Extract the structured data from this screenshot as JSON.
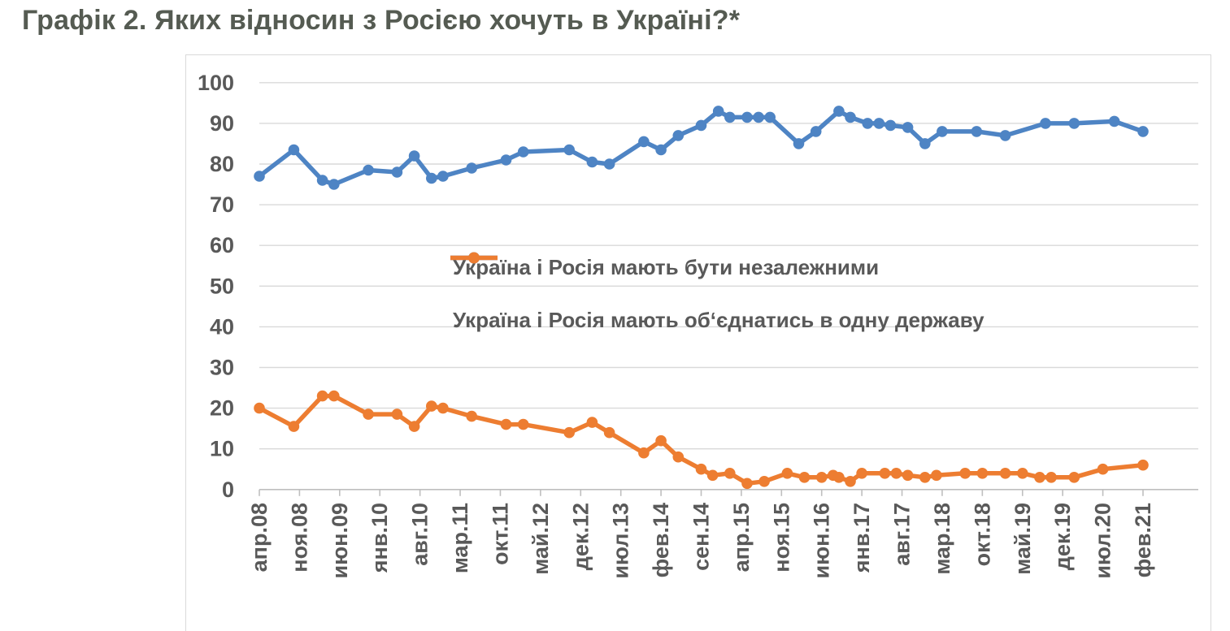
{
  "title": "Графік 2. Яких відносин з Росією хочуть в Україні?*",
  "colors": {
    "title_text": "#555b52",
    "axis_text": "#595959",
    "gridline": "#d9d9d9",
    "axis_line": "#bfbfbf",
    "chart_border": "#d9d9d9",
    "background": "#ffffff",
    "series_independent": "#4e84c4",
    "series_unite": "#ed7d31"
  },
  "chart_data": {
    "type": "line",
    "title": "Графік 2. Яких відносин з Росією хочуть в Україні?*",
    "grid": "horizontal",
    "legend_position": "inside-plot-left-center",
    "y_axis": {
      "min": 0,
      "max": 100,
      "step": 10,
      "ticks": [
        0,
        10,
        20,
        30,
        40,
        50,
        60,
        70,
        80,
        90,
        100
      ]
    },
    "x_axis": {
      "tick_labels": [
        "апр.08",
        "ноя.08",
        "июн.09",
        "янв.10",
        "авг.10",
        "мар.11",
        "окт.11",
        "май.12",
        "дек.12",
        "июл.13",
        "фев.14",
        "сен.14",
        "апр.15",
        "ноя.15",
        "июн.16",
        "янв.17",
        "авг.17",
        "мар.18",
        "окт.18",
        "май.19",
        "дек.19",
        "июл.20",
        "фев.21"
      ],
      "tick_month_offsets": [
        0,
        7,
        14,
        21,
        28,
        35,
        42,
        49,
        56,
        63,
        70,
        77,
        84,
        91,
        98,
        105,
        112,
        119,
        126,
        133,
        140,
        147,
        154
      ]
    },
    "series": [
      {
        "name": "Україна і Росія мають бути незалежними",
        "color": "#4e84c4",
        "points": [
          [
            0,
            77
          ],
          [
            6,
            83.5
          ],
          [
            11,
            76
          ],
          [
            13,
            75
          ],
          [
            19,
            78.5
          ],
          [
            24,
            78
          ],
          [
            27,
            82
          ],
          [
            30,
            76.5
          ],
          [
            32,
            77
          ],
          [
            37,
            79
          ],
          [
            43,
            81
          ],
          [
            46,
            83
          ],
          [
            54,
            83.5
          ],
          [
            58,
            80.5
          ],
          [
            61,
            80
          ],
          [
            67,
            85.5
          ],
          [
            70,
            83.5
          ],
          [
            73,
            87
          ],
          [
            77,
            89.5
          ],
          [
            80,
            93
          ],
          [
            82,
            91.5
          ],
          [
            85,
            91.5
          ],
          [
            87,
            91.5
          ],
          [
            89,
            91.5
          ],
          [
            94,
            85
          ],
          [
            97,
            88
          ],
          [
            101,
            93
          ],
          [
            103,
            91.5
          ],
          [
            106,
            90
          ],
          [
            108,
            90
          ],
          [
            110,
            89.5
          ],
          [
            113,
            89
          ],
          [
            116,
            85
          ],
          [
            119,
            88
          ],
          [
            125,
            88
          ],
          [
            130,
            87
          ],
          [
            137,
            90
          ],
          [
            142,
            90
          ],
          [
            149,
            90.5
          ],
          [
            154,
            88
          ]
        ]
      },
      {
        "name": "Україна і Росія мають об‘єднатись в одну державу",
        "color": "#ed7d31",
        "points": [
          [
            0,
            20
          ],
          [
            6,
            15.5
          ],
          [
            11,
            23
          ],
          [
            13,
            23
          ],
          [
            19,
            18.5
          ],
          [
            24,
            18.5
          ],
          [
            27,
            15.5
          ],
          [
            30,
            20.5
          ],
          [
            32,
            20
          ],
          [
            37,
            18
          ],
          [
            43,
            16
          ],
          [
            46,
            16
          ],
          [
            54,
            14
          ],
          [
            58,
            16.5
          ],
          [
            61,
            14
          ],
          [
            67,
            9
          ],
          [
            70,
            12
          ],
          [
            73,
            8
          ],
          [
            77,
            5
          ],
          [
            79,
            3.5
          ],
          [
            82,
            4
          ],
          [
            85,
            1.5
          ],
          [
            88,
            2
          ],
          [
            92,
            4
          ],
          [
            95,
            3
          ],
          [
            98,
            3
          ],
          [
            100,
            3.5
          ],
          [
            101,
            3
          ],
          [
            103,
            2
          ],
          [
            105,
            4
          ],
          [
            109,
            4
          ],
          [
            111,
            4
          ],
          [
            113,
            3.5
          ],
          [
            116,
            3
          ],
          [
            118,
            3.5
          ],
          [
            123,
            4
          ],
          [
            126,
            4
          ],
          [
            130,
            4
          ],
          [
            133,
            4
          ],
          [
            136,
            3
          ],
          [
            138,
            3
          ],
          [
            142,
            3
          ],
          [
            147,
            5
          ],
          [
            154,
            6
          ]
        ]
      }
    ]
  }
}
